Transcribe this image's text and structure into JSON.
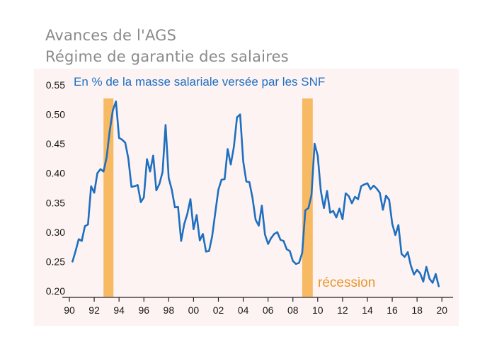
{
  "header": {
    "title": "Avances de l'AGS",
    "subtitle": "Régime de garantie des salaires"
  },
  "chart_data": {
    "type": "line",
    "title": "Avances de l'AGS",
    "subtitle": "En % de la masse salariale versée par les SNF",
    "xlabel": "",
    "ylabel": "",
    "xlim": [
      1990,
      2020.5
    ],
    "ylim": [
      0.2,
      0.55
    ],
    "x_ticks": [
      1990,
      1992,
      1994,
      1996,
      1998,
      2000,
      2002,
      2004,
      2006,
      2008,
      2010,
      2012,
      2014,
      2016,
      2018,
      2020
    ],
    "x_tick_labels": [
      "90",
      "92",
      "94",
      "96",
      "98",
      "00",
      "02",
      "04",
      "06",
      "08",
      "10",
      "12",
      "14",
      "16",
      "18",
      "20"
    ],
    "y_ticks": [
      0.2,
      0.25,
      0.3,
      0.35,
      0.4,
      0.45,
      0.5,
      0.55
    ],
    "y_tick_labels": [
      "0.20",
      "0.25",
      "0.30",
      "0.35",
      "0.40",
      "0.45",
      "0.50",
      "0.55"
    ],
    "grid": false,
    "background": "#fdf3f3",
    "line_color": "#1f6fbf",
    "recession_color": "#f8b963",
    "recessions": [
      [
        1992.75,
        1993.55
      ],
      [
        2008.75,
        2009.6
      ]
    ],
    "annotation": "récession",
    "series": [
      {
        "name": "",
        "x": [
          1990.25,
          1990.5,
          1990.75,
          1991.0,
          1991.25,
          1991.5,
          1991.75,
          1992.0,
          1992.25,
          1992.5,
          1992.75,
          1993.0,
          1993.25,
          1993.5,
          1993.75,
          1994.0,
          1994.25,
          1994.5,
          1994.75,
          1995.0,
          1995.25,
          1995.5,
          1995.75,
          1996.0,
          1996.25,
          1996.5,
          1996.75,
          1997.0,
          1997.25,
          1997.5,
          1997.75,
          1998.0,
          1998.25,
          1998.5,
          1998.75,
          1999.0,
          1999.25,
          1999.5,
          1999.75,
          2000.0,
          2000.25,
          2000.5,
          2000.75,
          2001.0,
          2001.25,
          2001.5,
          2001.75,
          2002.0,
          2002.25,
          2002.5,
          2002.75,
          2003.0,
          2003.25,
          2003.5,
          2003.75,
          2004.0,
          2004.25,
          2004.5,
          2004.75,
          2005.0,
          2005.25,
          2005.5,
          2005.75,
          2006.0,
          2006.25,
          2006.5,
          2006.75,
          2007.0,
          2007.25,
          2007.5,
          2007.75,
          2008.0,
          2008.25,
          2008.5,
          2008.75,
          2009.0,
          2009.25,
          2009.5,
          2009.75,
          2010.0,
          2010.25,
          2010.5,
          2010.75,
          2011.0,
          2011.25,
          2011.5,
          2011.75,
          2012.0,
          2012.25,
          2012.5,
          2012.75,
          2013.0,
          2013.25,
          2013.5,
          2013.75,
          2014.0,
          2014.25,
          2014.5,
          2014.75,
          2015.0,
          2015.25,
          2015.5,
          2015.75,
          2016.0,
          2016.25,
          2016.5,
          2016.75,
          2017.0,
          2017.25,
          2017.5,
          2017.75,
          2018.0,
          2018.25,
          2018.5,
          2018.75,
          2019.0,
          2019.25,
          2019.5,
          2019.75
        ],
        "values": [
          0.25,
          0.268,
          0.288,
          0.285,
          0.31,
          0.313,
          0.378,
          0.367,
          0.4,
          0.407,
          0.403,
          0.427,
          0.472,
          0.507,
          0.522,
          0.46,
          0.457,
          0.452,
          0.425,
          0.377,
          0.378,
          0.38,
          0.351,
          0.359,
          0.424,
          0.403,
          0.43,
          0.371,
          0.382,
          0.402,
          0.482,
          0.392,
          0.372,
          0.342,
          0.343,
          0.285,
          0.314,
          0.331,
          0.356,
          0.305,
          0.329,
          0.286,
          0.297,
          0.267,
          0.268,
          0.293,
          0.333,
          0.372,
          0.389,
          0.39,
          0.441,
          0.415,
          0.445,
          0.495,
          0.5,
          0.42,
          0.386,
          0.385,
          0.358,
          0.321,
          0.311,
          0.345,
          0.296,
          0.28,
          0.29,
          0.297,
          0.3,
          0.287,
          0.285,
          0.271,
          0.268,
          0.251,
          0.246,
          0.248,
          0.265,
          0.337,
          0.341,
          0.363,
          0.45,
          0.43,
          0.37,
          0.341,
          0.37,
          0.333,
          0.336,
          0.325,
          0.34,
          0.322,
          0.366,
          0.361,
          0.349,
          0.36,
          0.356,
          0.378,
          0.381,
          0.383,
          0.373,
          0.379,
          0.374,
          0.367,
          0.338,
          0.362,
          0.355,
          0.314,
          0.295,
          0.312,
          0.263,
          0.258,
          0.266,
          0.243,
          0.228,
          0.236,
          0.23,
          0.216,
          0.241,
          0.221,
          0.214,
          0.229,
          0.208
        ]
      }
    ]
  }
}
